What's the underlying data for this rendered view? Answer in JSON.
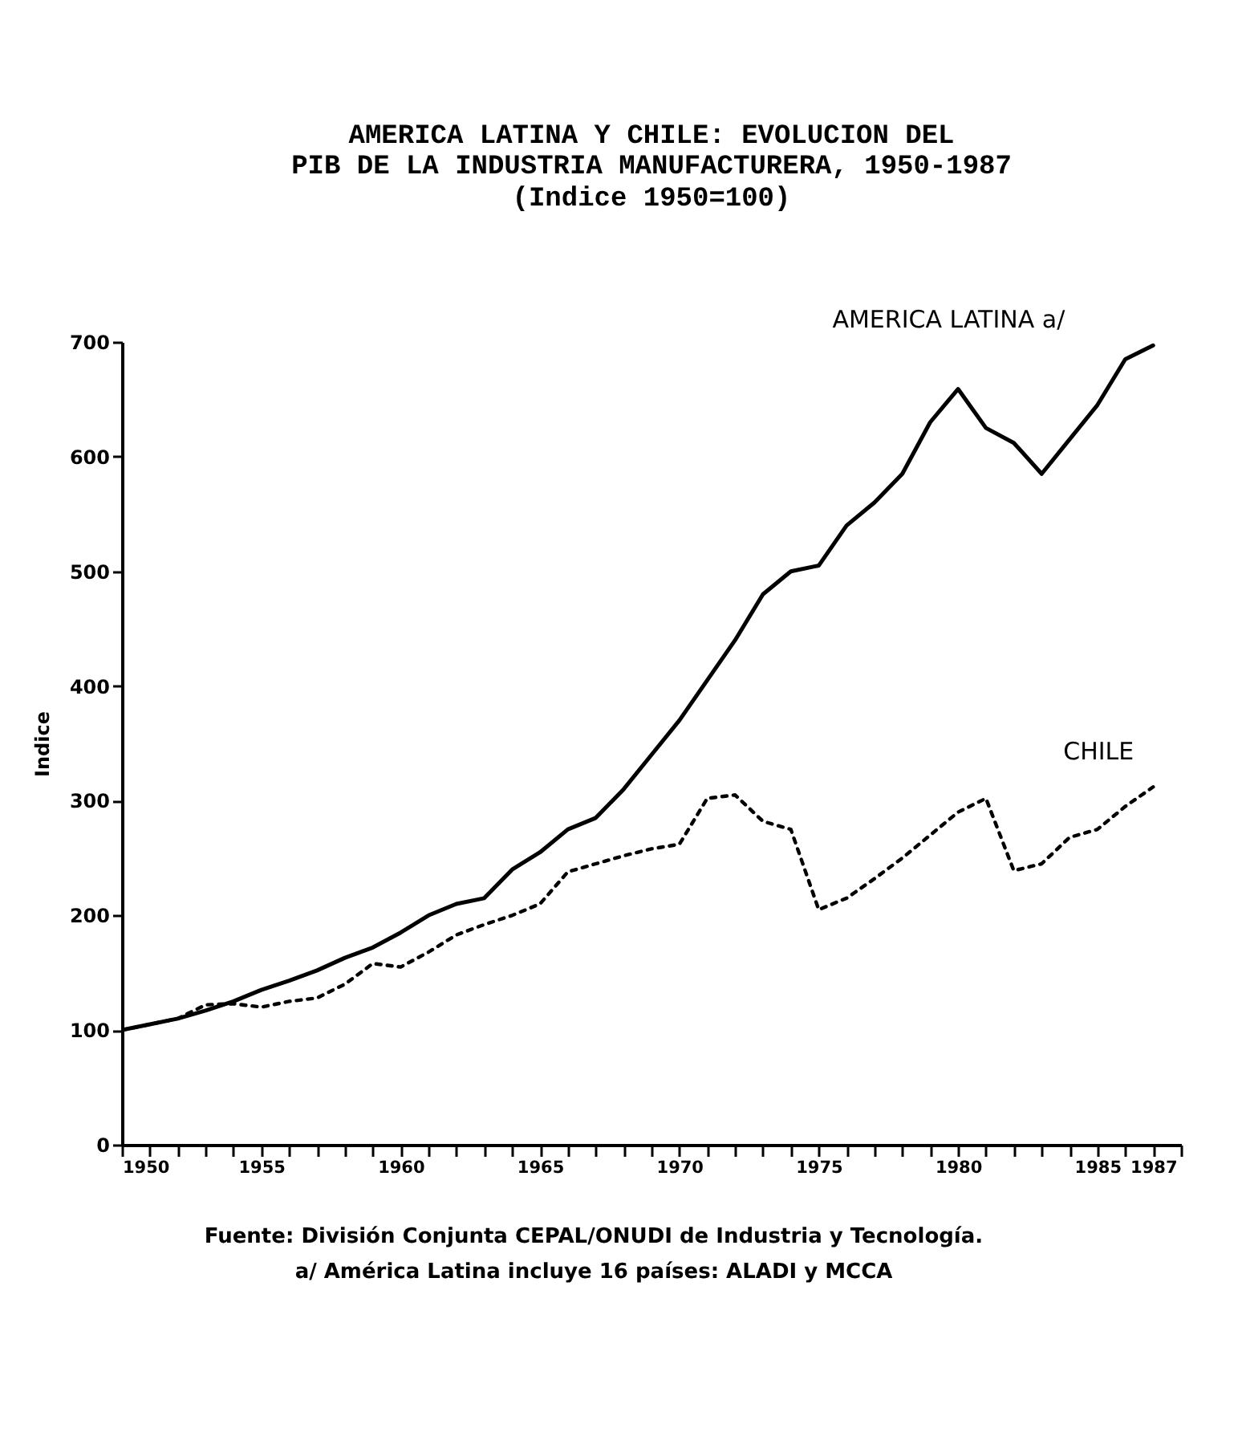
{
  "chart_data": {
    "type": "line",
    "title": "AMERICA LATINA Y CHILE: EVOLUCION DEL\nPIB DE LA INDUSTRIA MANUFACTURERA, 1950-1987",
    "subtitle": "(Indice 1950=100)",
    "ylabel": "Indice",
    "x": [
      1950,
      1951,
      1952,
      1953,
      1954,
      1955,
      1956,
      1957,
      1958,
      1959,
      1960,
      1961,
      1962,
      1963,
      1964,
      1965,
      1966,
      1967,
      1968,
      1969,
      1970,
      1971,
      1972,
      1973,
      1974,
      1975,
      1976,
      1977,
      1978,
      1979,
      1980,
      1981,
      1982,
      1983,
      1984,
      1985,
      1986,
      1987
    ],
    "series": [
      {
        "name": "AMERICA LATINA a/",
        "color": "#000000",
        "line_style": "solid",
        "values": [
          100,
          105,
          110,
          117,
          125,
          135,
          143,
          152,
          163,
          172,
          185,
          200,
          210,
          215,
          240,
          255,
          275,
          285,
          310,
          340,
          370,
          405,
          440,
          480,
          500,
          505,
          540,
          560,
          585,
          630,
          659,
          625,
          612,
          585,
          615,
          645,
          685,
          697
        ]
      },
      {
        "name": "CHILE",
        "color": "#000000",
        "line_style": "dotted",
        "values": [
          100,
          105,
          110,
          122,
          123,
          120,
          125,
          128,
          140,
          158,
          155,
          168,
          183,
          192,
          200,
          210,
          238,
          245,
          252,
          258,
          262,
          302,
          305,
          282,
          275,
          205,
          215,
          232,
          250,
          270,
          290,
          302,
          239,
          245,
          268,
          275,
          295,
          312
        ]
      }
    ],
    "xlim": [
      1950,
      1988
    ],
    "xticks": [
      1950,
      {
        "value": 1951,
        "label": null
      },
      {
        "value": 1952,
        "label": null
      },
      {
        "value": 1953,
        "label": null
      },
      {
        "value": 1954,
        "label": null
      },
      1955,
      {
        "value": 1956,
        "label": null
      },
      {
        "value": 1957,
        "label": null
      },
      {
        "value": 1958,
        "label": null
      },
      {
        "value": 1959,
        "label": null
      },
      1960,
      {
        "value": 1961,
        "label": null
      },
      {
        "value": 1962,
        "label": null
      },
      {
        "value": 1963,
        "label": null
      },
      {
        "value": 1964,
        "label": null
      },
      1965,
      {
        "value": 1966,
        "label": null
      },
      {
        "value": 1967,
        "label": null
      },
      {
        "value": 1968,
        "label": null
      },
      {
        "value": 1969,
        "label": null
      },
      1970,
      {
        "value": 1971,
        "label": null
      },
      {
        "value": 1972,
        "label": null
      },
      {
        "value": 1973,
        "label": null
      },
      {
        "value": 1974,
        "label": null
      },
      1975,
      {
        "value": 1976,
        "label": null
      },
      {
        "value": 1977,
        "label": null
      },
      {
        "value": 1978,
        "label": null
      },
      {
        "value": 1979,
        "label": null
      },
      1980,
      {
        "value": 1981,
        "label": null
      },
      {
        "value": 1982,
        "label": null
      },
      {
        "value": 1983,
        "label": null
      },
      {
        "value": 1984,
        "label": null
      },
      1985,
      {
        "value": 1986,
        "label": null
      },
      1987,
      {
        "value": 1988,
        "label": null
      }
    ],
    "ylim": [
      0,
      700
    ],
    "yticks": [
      0,
      100,
      200,
      300,
      400,
      500,
      600,
      700
    ],
    "grid": false,
    "legend": false,
    "marker": "none",
    "annotations": [
      "Fuente: División Conjunta CEPAL/ONUDI de Industria y Tecnología.",
      "a/ América Latina incluye 16 países: ALADI y MCCA"
    ]
  }
}
